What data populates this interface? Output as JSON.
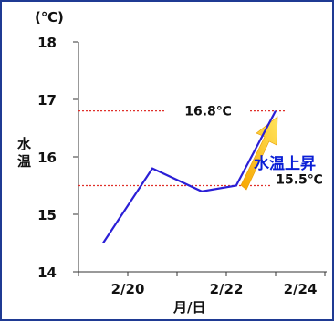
{
  "chart_data": {
    "type": "line",
    "unit_label": "(℃)",
    "ylabel": "水温",
    "xlabel": "月/日",
    "ylim": [
      14,
      18
    ],
    "yticks": [
      "14",
      "15",
      "16",
      "17",
      "18"
    ],
    "x_tick_labels": [
      {
        "x": 1,
        "label": "2/20"
      },
      {
        "x": 3,
        "label": "2/22"
      },
      {
        "x": 4.5,
        "label": "2/24"
      }
    ],
    "series": [
      {
        "x": [
          0.5,
          1.5,
          2.5,
          3.2,
          4
        ],
        "values": [
          14.5,
          15.8,
          15.4,
          15.5,
          16.8
        ],
        "color": "#2b1fd6"
      }
    ],
    "reference_lines": [
      {
        "value": 16.8,
        "label": "16.8℃",
        "color": "#e0302a"
      },
      {
        "value": 15.5,
        "label": "15.5℃",
        "color": "#e0302a"
      }
    ],
    "annotation": {
      "text": "水温上昇",
      "arrow_color": "#f5c21b"
    },
    "grid": false
  }
}
